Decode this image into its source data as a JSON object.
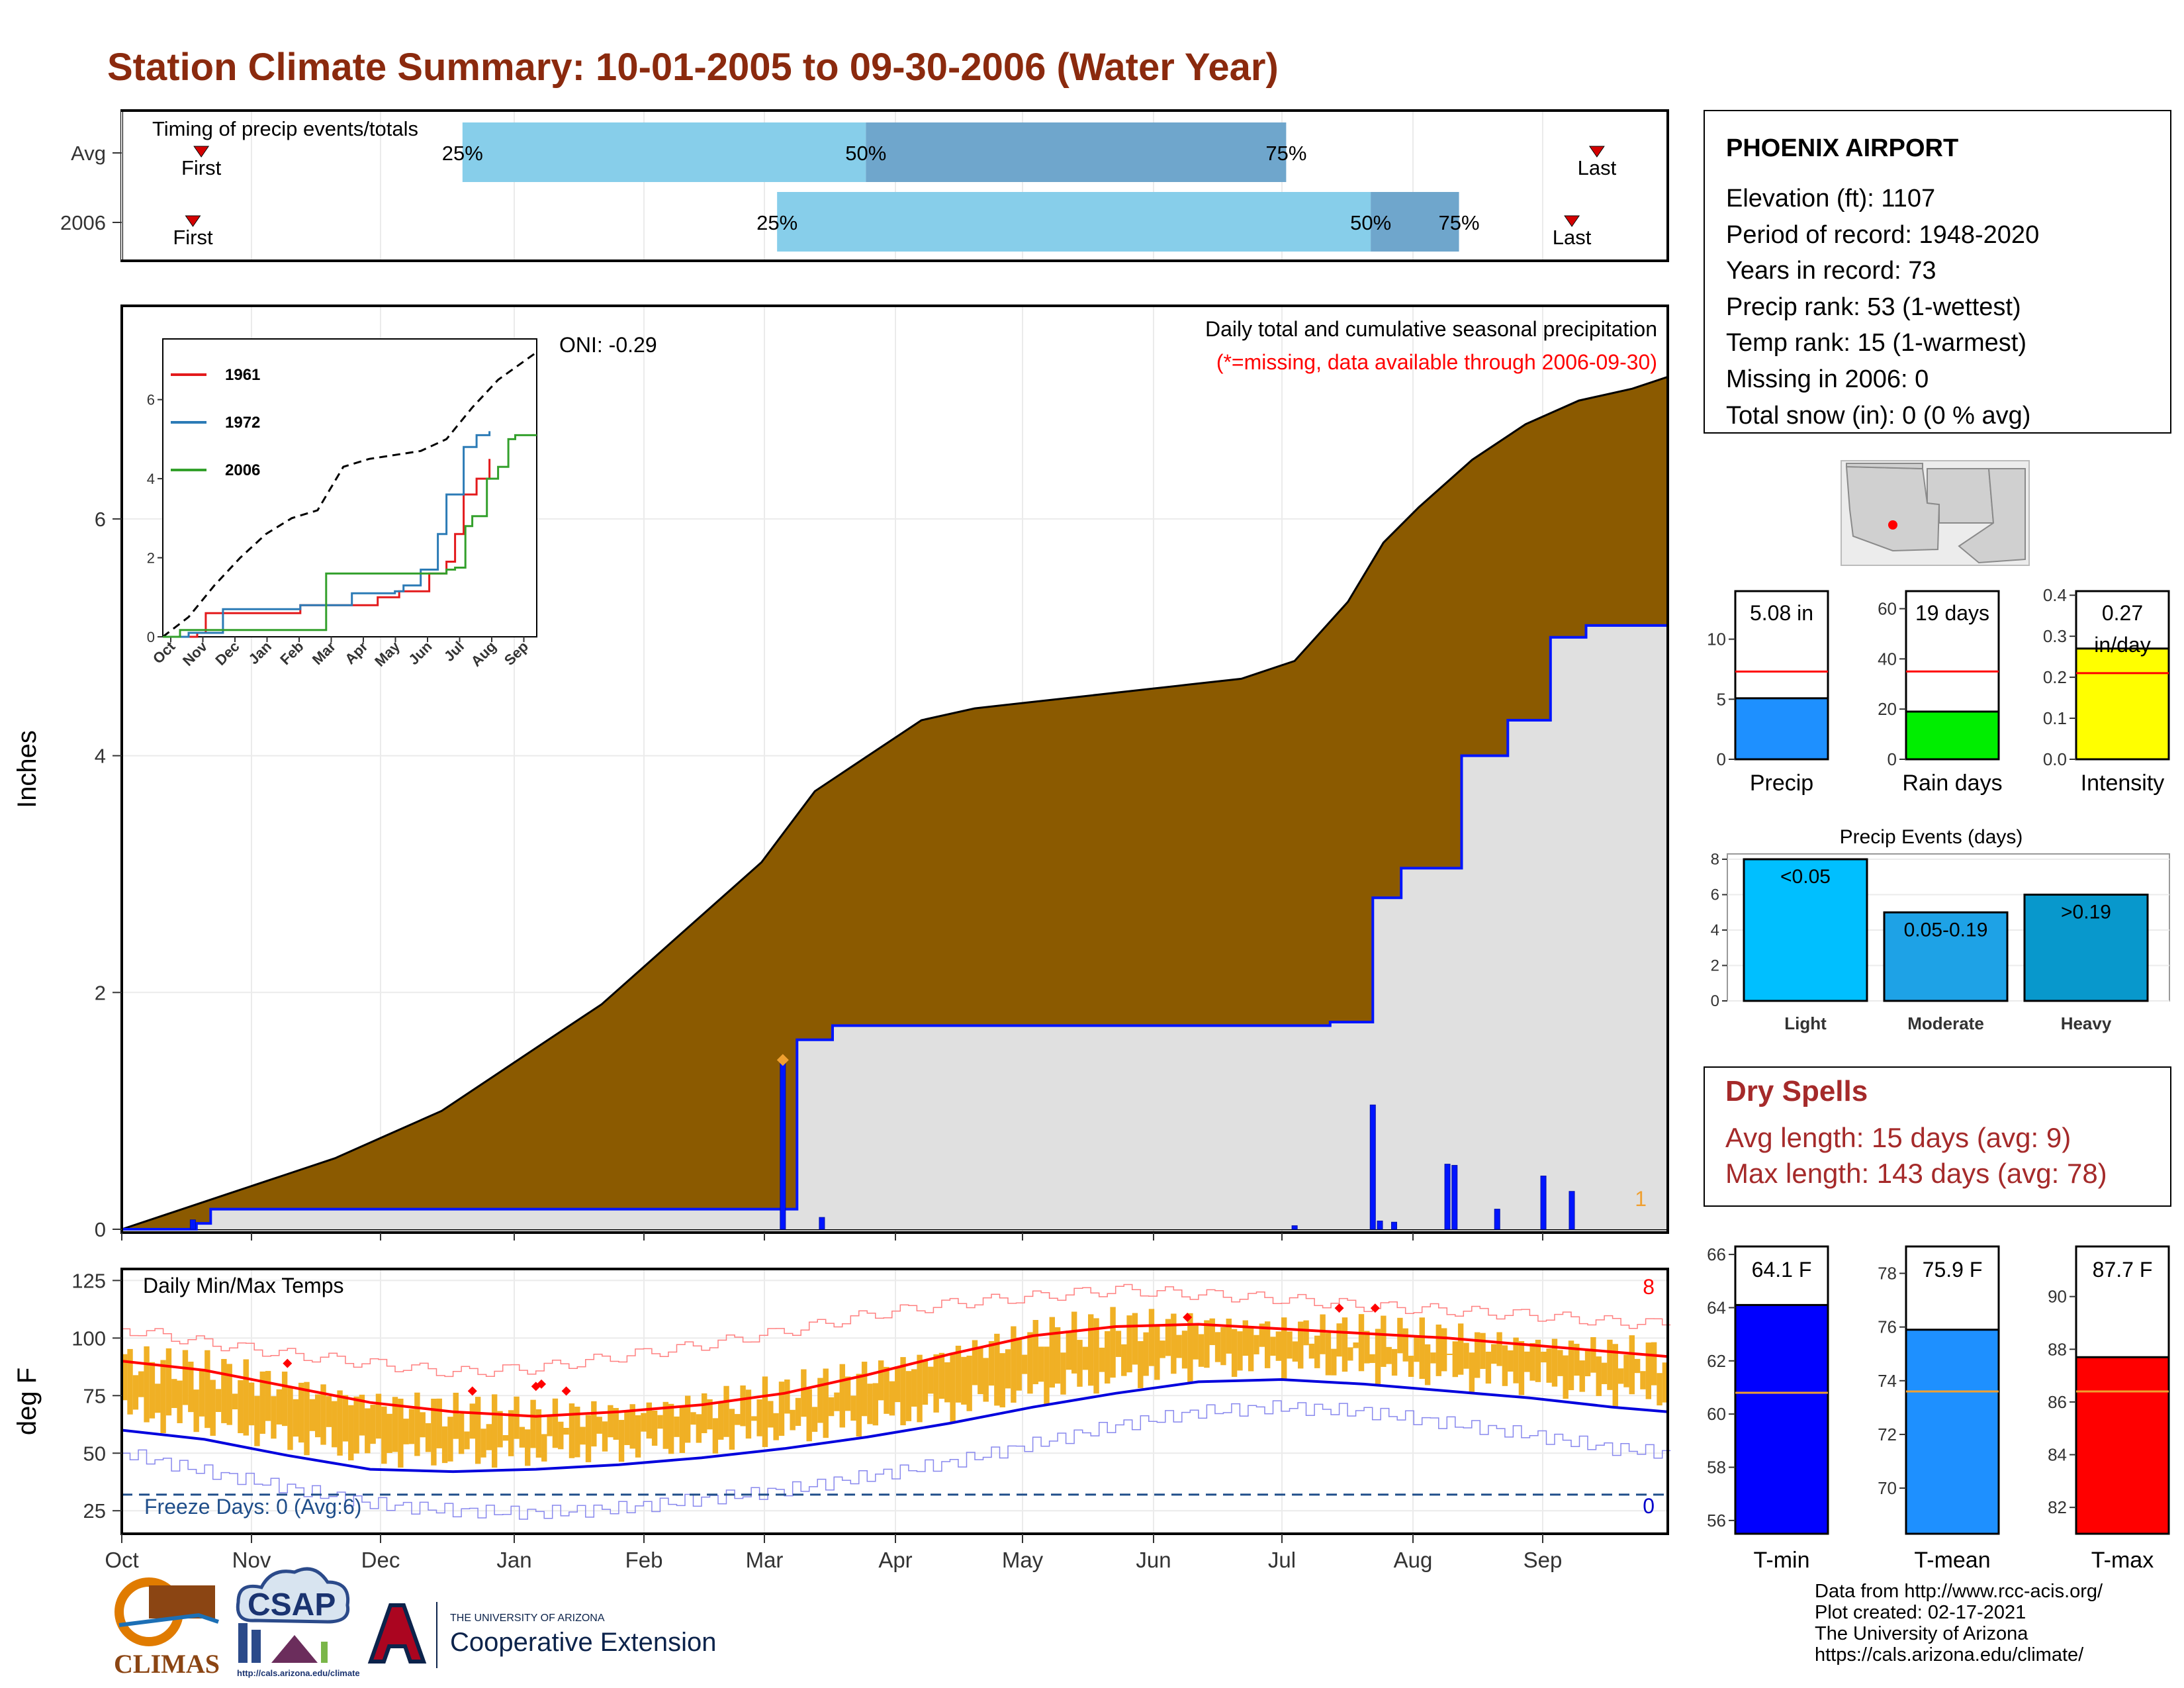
{
  "title": "Station Climate Summary: 10-01-2005 to 09-30-2006 (Water Year)",
  "timing": {
    "label": "Timing of precip events/totals",
    "rows": [
      {
        "name": "Avg",
        "p25": "2005-12-20",
        "p50": "2006-03-25",
        "p75": "2006-07-02",
        "first": "2005-10-20",
        "last": "2006-09-14"
      },
      {
        "name": "2006",
        "p25": "2006-03-04",
        "p50": "2006-07-22",
        "p75": "2006-08-12",
        "first": "2005-10-18",
        "last": "2006-09-08"
      }
    ],
    "p25_label": "25%",
    "p50_label": "50%",
    "p75_label": "75%",
    "first_label": "First",
    "last_label": "Last",
    "colors": {
      "light": "#87ceea",
      "dark": "#6fa6cc",
      "marker": "#d40000"
    }
  },
  "precip": {
    "ylabel": "Inches",
    "caption": "Daily total and cumulative seasonal precipitation",
    "missing_note": "(*=missing, data available through 2006-09-30)",
    "oni": "ONI: -0.29",
    "missing_count": "1",
    "y_ticks": [
      "0",
      "2",
      "4",
      "6"
    ],
    "ylim": [
      0,
      7.8
    ],
    "x_ticks": [
      "Oct",
      "Nov",
      "Dec",
      "Jan",
      "Feb",
      "Mar",
      "Apr",
      "May",
      "Jun",
      "Jul",
      "Aug",
      "Sep"
    ],
    "avg_cumulative": [
      [
        0,
        0
      ],
      [
        15,
        0.15
      ],
      [
        30,
        0.3
      ],
      [
        45,
        0.45
      ],
      [
        60,
        0.6
      ],
      [
        75,
        0.8
      ],
      [
        90,
        1.0
      ],
      [
        105,
        1.3
      ],
      [
        120,
        1.6
      ],
      [
        135,
        1.9
      ],
      [
        150,
        2.3
      ],
      [
        165,
        2.7
      ],
      [
        180,
        3.1
      ],
      [
        195,
        3.7
      ],
      [
        210,
        4.0
      ],
      [
        225,
        4.3
      ],
      [
        240,
        4.4
      ],
      [
        255,
        4.45
      ],
      [
        270,
        4.5
      ],
      [
        285,
        4.55
      ],
      [
        300,
        4.6
      ],
      [
        315,
        4.65
      ],
      [
        330,
        4.8
      ],
      [
        345,
        5.3
      ],
      [
        355,
        5.8
      ],
      [
        365,
        6.1
      ],
      [
        380,
        6.5
      ],
      [
        395,
        6.8
      ],
      [
        410,
        7.0
      ],
      [
        425,
        7.1
      ],
      [
        435,
        7.2
      ]
    ],
    "cumulative_2006": [
      [
        0,
        0
      ],
      [
        20,
        0
      ],
      [
        21,
        0.05
      ],
      [
        25,
        0.17
      ],
      [
        187,
        0.17
      ],
      [
        190,
        1.6
      ],
      [
        200,
        1.72
      ],
      [
        330,
        1.72
      ],
      [
        340,
        1.75
      ],
      [
        350,
        1.75
      ],
      [
        352,
        2.8
      ],
      [
        360,
        3.05
      ],
      [
        375,
        3.05
      ],
      [
        377,
        4.0
      ],
      [
        387,
        4.0
      ],
      [
        390,
        4.3
      ],
      [
        400,
        4.3
      ],
      [
        402,
        5.0
      ],
      [
        410,
        5.0
      ],
      [
        412,
        5.1
      ],
      [
        435,
        5.1
      ]
    ],
    "daily_bars": [
      [
        20,
        0.08
      ],
      [
        186,
        1.43
      ],
      [
        197,
        0.1
      ],
      [
        330,
        0.03
      ],
      [
        352,
        1.05
      ],
      [
        354,
        0.07
      ],
      [
        358,
        0.06
      ],
      [
        373,
        0.55
      ],
      [
        375,
        0.54
      ],
      [
        387,
        0.17
      ],
      [
        400,
        0.45
      ],
      [
        408,
        0.32
      ]
    ],
    "flag_point": [
      186,
      1.43
    ],
    "colors": {
      "avg_fill": "#8b5a00",
      "year_fill": "#e0e0e0",
      "year_line": "#0015ff",
      "bar": "#0015ff",
      "flag": "#f0a030"
    }
  },
  "inset": {
    "x_ticks": [
      "Oct",
      "Nov",
      "Dec",
      "Jan",
      "Feb",
      "Mar",
      "Apr",
      "May",
      "Jun",
      "Jul",
      "Aug",
      "Sep"
    ],
    "y_ticks": [
      "0",
      "2",
      "4",
      "6"
    ],
    "ylim": [
      0,
      7.2
    ],
    "series": [
      {
        "name": "1961",
        "color": "#e31a1c",
        "points": [
          [
            0,
            0
          ],
          [
            40,
            0.1
          ],
          [
            50,
            0.6
          ],
          [
            130,
            0.6
          ],
          [
            160,
            0.8
          ],
          [
            250,
            1.0
          ],
          [
            275,
            1.15
          ],
          [
            310,
            1.6
          ],
          [
            330,
            1.9
          ],
          [
            340,
            2.6
          ],
          [
            350,
            3.6
          ],
          [
            365,
            4.0
          ],
          [
            380,
            4.5
          ]
        ]
      },
      {
        "name": "1972",
        "color": "#2c7bb6",
        "points": [
          [
            0,
            0
          ],
          [
            30,
            0.1
          ],
          [
            70,
            0.7
          ],
          [
            160,
            0.8
          ],
          [
            220,
            1.1
          ],
          [
            270,
            1.15
          ],
          [
            280,
            1.3
          ],
          [
            300,
            1.7
          ],
          [
            320,
            2.6
          ],
          [
            330,
            3.6
          ],
          [
            350,
            4.8
          ],
          [
            365,
            5.1
          ],
          [
            380,
            5.2
          ]
        ]
      },
      {
        "name": "2006",
        "color": "#33a02c",
        "points": [
          [
            0,
            0
          ],
          [
            20,
            0.17
          ],
          [
            186,
            0.17
          ],
          [
            190,
            1.6
          ],
          [
            330,
            1.7
          ],
          [
            340,
            1.75
          ],
          [
            352,
            2.8
          ],
          [
            360,
            3.05
          ],
          [
            377,
            4.0
          ],
          [
            390,
            4.3
          ],
          [
            402,
            5.0
          ],
          [
            410,
            5.1
          ],
          [
            435,
            5.1
          ]
        ]
      }
    ],
    "avg_points": [
      [
        0,
        0
      ],
      [
        30,
        0.5
      ],
      [
        60,
        1.3
      ],
      [
        90,
        2.0
      ],
      [
        120,
        2.6
      ],
      [
        150,
        3.0
      ],
      [
        180,
        3.2
      ],
      [
        210,
        4.3
      ],
      [
        240,
        4.5
      ],
      [
        270,
        4.6
      ],
      [
        300,
        4.7
      ],
      [
        330,
        5.0
      ],
      [
        360,
        5.8
      ],
      [
        390,
        6.5
      ],
      [
        435,
        7.2
      ]
    ]
  },
  "temps": {
    "label": "Daily Min/Max Temps",
    "ylabel": "deg F",
    "y_ticks": [
      "25",
      "50",
      "75",
      "100",
      "125"
    ],
    "ylim": [
      15,
      130
    ],
    "freeze_label": "Freeze Days: 0 (Avg:6)",
    "freeze_temp": 32,
    "hot_count": "8",
    "cold_count": "0",
    "avg_max": [
      [
        0,
        90
      ],
      [
        30,
        86
      ],
      [
        60,
        79
      ],
      [
        90,
        72
      ],
      [
        105,
        70
      ],
      [
        120,
        68
      ],
      [
        150,
        66
      ],
      [
        180,
        68
      ],
      [
        210,
        71
      ],
      [
        240,
        76
      ],
      [
        270,
        84
      ],
      [
        300,
        93
      ],
      [
        330,
        101
      ],
      [
        360,
        105
      ],
      [
        390,
        106
      ],
      [
        420,
        104
      ],
      [
        450,
        102
      ],
      [
        480,
        100
      ],
      [
        510,
        97
      ],
      [
        540,
        94
      ],
      [
        560,
        92
      ]
    ],
    "avg_min": [
      [
        0,
        60
      ],
      [
        30,
        56
      ],
      [
        60,
        49
      ],
      [
        90,
        43
      ],
      [
        120,
        42
      ],
      [
        150,
        43
      ],
      [
        180,
        45
      ],
      [
        210,
        48
      ],
      [
        240,
        52
      ],
      [
        270,
        57
      ],
      [
        300,
        63
      ],
      [
        330,
        70
      ],
      [
        360,
        76
      ],
      [
        390,
        81
      ],
      [
        420,
        82
      ],
      [
        450,
        80
      ],
      [
        480,
        77
      ],
      [
        510,
        74
      ],
      [
        540,
        70
      ],
      [
        560,
        68
      ]
    ],
    "record_max": [
      [
        0,
        104
      ],
      [
        30,
        98
      ],
      [
        60,
        93
      ],
      [
        90,
        89
      ],
      [
        120,
        85
      ],
      [
        150,
        87
      ],
      [
        180,
        92
      ],
      [
        210,
        97
      ],
      [
        240,
        103
      ],
      [
        270,
        110
      ],
      [
        300,
        115
      ],
      [
        330,
        118
      ],
      [
        360,
        121
      ],
      [
        390,
        119
      ],
      [
        420,
        117
      ],
      [
        450,
        114
      ],
      [
        480,
        112
      ],
      [
        510,
        110
      ],
      [
        540,
        107
      ],
      [
        560,
        106
      ]
    ],
    "record_min": [
      [
        0,
        50
      ],
      [
        30,
        42
      ],
      [
        60,
        35
      ],
      [
        90,
        28
      ],
      [
        120,
        25
      ],
      [
        150,
        24
      ],
      [
        180,
        26
      ],
      [
        210,
        30
      ],
      [
        240,
        34
      ],
      [
        270,
        40
      ],
      [
        300,
        46
      ],
      [
        330,
        54
      ],
      [
        360,
        62
      ],
      [
        390,
        68
      ],
      [
        420,
        70
      ],
      [
        450,
        68
      ],
      [
        480,
        63
      ],
      [
        510,
        58
      ],
      [
        540,
        52
      ],
      [
        560,
        50
      ]
    ],
    "record_highs": [
      [
        60,
        89
      ],
      [
        127,
        77
      ],
      [
        150,
        79
      ],
      [
        152,
        80
      ],
      [
        161,
        77
      ],
      [
        386,
        109
      ],
      [
        441,
        113
      ],
      [
        454,
        113
      ]
    ],
    "colors": {
      "bars": "#f0b025",
      "avg_max": "#ff0000",
      "avg_min": "#0000dd",
      "record_max": "#ff8080",
      "record_min": "#8888ee",
      "freeze": "#1f4e8a",
      "hot_marker": "#ff0000"
    }
  },
  "x_months": [
    "Oct",
    "Nov",
    "Dec",
    "Jan",
    "Feb",
    "Mar",
    "Apr",
    "May",
    "Jun",
    "Jul",
    "Aug",
    "Sep"
  ],
  "station": {
    "name": "PHOENIX AIRPORT",
    "lines": [
      "Elevation (ft): 1107",
      "Period of record: 1948-2020",
      "Years in record: 73",
      "Precip rank: 53 (1-wettest)",
      "Temp rank: 15 (1-warmest)",
      "Missing in 2006: 0",
      "Total snow (in): 0 (0 % avg)"
    ]
  },
  "map": {
    "marker_color": "#ff0000"
  },
  "gauges": [
    {
      "name": "Precip",
      "label": "5.08 in",
      "value": 5.08,
      "avg": 7.3,
      "ticks": [
        0,
        5,
        10
      ],
      "max": 14,
      "color": "#1e90ff"
    },
    {
      "name": "Rain days",
      "label": "19 days",
      "value": 19,
      "avg": 35,
      "ticks": [
        0,
        20,
        40,
        60
      ],
      "max": 67,
      "color": "#00ee00"
    },
    {
      "name": "Intensity",
      "label": "0.27 in/day",
      "value": 0.27,
      "avg": 0.21,
      "ticks": [
        0.0,
        0.1,
        0.2,
        0.3,
        0.4
      ],
      "max": 0.41,
      "color": "#ffff00"
    }
  ],
  "events": {
    "title": "Precip Events (days)",
    "y_ticks": [
      0,
      2,
      4,
      6,
      8
    ],
    "bars": [
      {
        "category": "Light",
        "label": "<0.05",
        "value": 8,
        "color": "#00bfff"
      },
      {
        "category": "Moderate",
        "label": "0.05-0.19",
        "value": 5,
        "color": "#1ea2e6"
      },
      {
        "category": "Heavy",
        "label": ">0.19",
        "value": 6,
        "color": "#0898cc"
      }
    ]
  },
  "dry_spells": {
    "title": "Dry Spells",
    "avg_line": "Avg length: 15 days (avg: 9)",
    "max_line": "Max length: 143 days (avg: 78)"
  },
  "temp_gauges": [
    {
      "name": "T-min",
      "label": "64.1 F",
      "value": 64.1,
      "avg": 60.8,
      "ticks": [
        56,
        58,
        60,
        62,
        64,
        66
      ],
      "min": 55.5,
      "max": 66.3,
      "color": "#0000ff"
    },
    {
      "name": "T-mean",
      "label": "75.9 F",
      "value": 75.9,
      "avg": 73.6,
      "ticks": [
        70,
        72,
        74,
        76,
        78
      ],
      "min": 68.3,
      "max": 79.0,
      "color": "#1e90ff"
    },
    {
      "name": "T-max",
      "label": "87.7 F",
      "value": 87.7,
      "avg": 86.4,
      "ticks": [
        82,
        84,
        86,
        88,
        90
      ],
      "min": 81.0,
      "max": 91.9,
      "color": "#ff0000"
    }
  ],
  "logos": {
    "climas": "CLIMAS",
    "csap": "CSAP",
    "csap_url": "http://cals.arizona.edu/climate",
    "ua_small": "THE UNIVERSITY OF ARIZONA",
    "ua_big": "Cooperative Extension"
  },
  "credits": [
    "Data from http://www.rcc-acis.org/",
    "Plot created: 02-17-2021",
    "The University of Arizona",
    "https://cals.arizona.edu/climate/"
  ],
  "chart_data": [
    {
      "type": "area",
      "title": "Daily total and cumulative seasonal precipitation",
      "xlabel": "",
      "ylabel": "Inches",
      "x": [
        "Oct",
        "Nov",
        "Dec",
        "Jan",
        "Feb",
        "Mar",
        "Apr",
        "May",
        "Jun",
        "Jul",
        "Aug",
        "Sep"
      ],
      "ylim": [
        0,
        7.8
      ],
      "series": [
        {
          "name": "Avg",
          "values": [
            0.0,
            0.3,
            0.6,
            1.0,
            1.6,
            2.3,
            3.1,
            4.0,
            4.4,
            4.5,
            4.6,
            4.8
          ]
        },
        {
          "name": "2006",
          "values": [
            0.0,
            0.17,
            0.17,
            0.17,
            0.17,
            0.17,
            1.72,
            1.72,
            1.72,
            1.75,
            3.05,
            5.0
          ]
        }
      ]
    },
    {
      "type": "bar",
      "title": "Precip Events (days)",
      "categories": [
        "Light",
        "Moderate",
        "Heavy"
      ],
      "values": [
        8,
        5,
        6
      ],
      "ylim": [
        0,
        8
      ]
    },
    {
      "type": "bar",
      "categories": [
        "Precip",
        "Rain days",
        "Intensity"
      ],
      "values": [
        5.08,
        19,
        0.27
      ]
    },
    {
      "type": "bar",
      "categories": [
        "T-min",
        "T-mean",
        "T-max"
      ],
      "values": [
        64.1,
        75.9,
        87.7
      ]
    }
  ]
}
